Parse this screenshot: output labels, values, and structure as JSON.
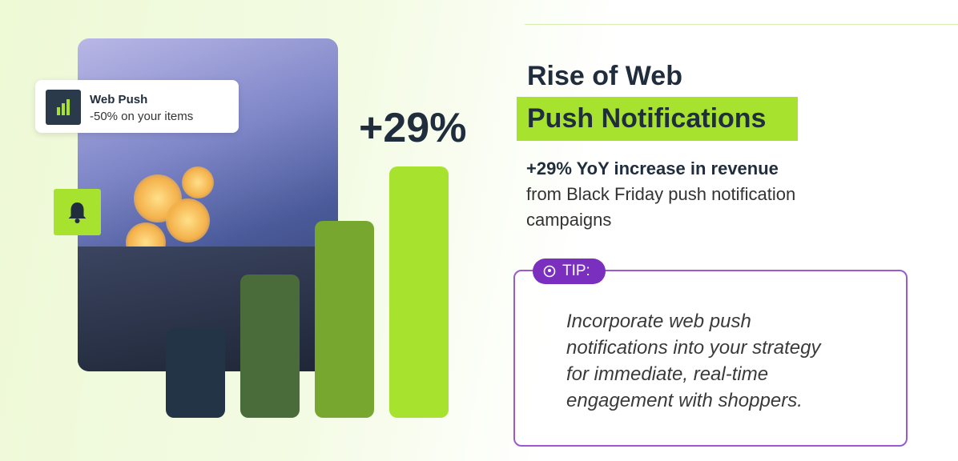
{
  "notification": {
    "title": "Web Push",
    "text": "-50% on your items"
  },
  "stat": "+29%",
  "heading": {
    "line1": "Rise of Web",
    "line2": "Push Notifications"
  },
  "body": {
    "lead": "+29% YoY increase in revenue",
    "lines": [
      "from Black Friday push notification",
      "campaigns"
    ]
  },
  "tip": {
    "label": "TIP:",
    "lines": [
      "Incorporate web push",
      "notifications into your strategy",
      "for immediate, real-time",
      "engagement with shoppers."
    ]
  }
}
